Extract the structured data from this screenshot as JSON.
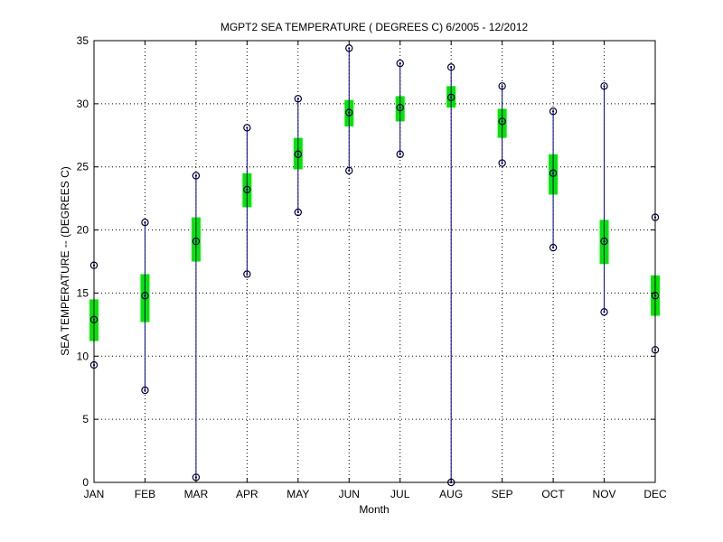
{
  "chart_data": {
    "type": "box",
    "title": "MGPT2  SEA TEMPERATURE ( DEGREES C) 6/2005 - 12/2012",
    "xlabel": "Month",
    "ylabel": "SEA TEMPERATURE -- (DEGREES C)",
    "categories": [
      "JAN",
      "FEB",
      "MAR",
      "APR",
      "MAY",
      "JUN",
      "JUL",
      "AUG",
      "SEP",
      "OCT",
      "NOV",
      "DEC"
    ],
    "ylim": [
      0,
      35
    ],
    "yticks": [
      "0",
      "5",
      "10",
      "15",
      "20",
      "25",
      "30",
      "35"
    ],
    "grid": true,
    "series": [
      {
        "min": [
          9.3,
          7.3,
          0.4,
          16.5,
          21.4,
          24.7,
          26.0,
          0.0,
          25.3,
          18.6,
          13.5,
          10.5
        ],
        "q1": [
          11.2,
          12.7,
          17.5,
          21.8,
          24.8,
          28.2,
          28.6,
          29.7,
          27.3,
          22.8,
          17.3,
          13.2
        ],
        "mean": [
          12.9,
          14.8,
          19.1,
          23.2,
          26.0,
          29.3,
          29.7,
          30.5,
          28.6,
          24.5,
          19.1,
          14.8
        ],
        "q3": [
          14.5,
          16.5,
          21.0,
          24.5,
          27.3,
          30.3,
          30.6,
          31.4,
          29.6,
          26.0,
          20.8,
          16.4
        ],
        "max": [
          17.2,
          20.6,
          24.3,
          28.1,
          30.4,
          34.4,
          33.2,
          32.9,
          31.4,
          29.4,
          31.4,
          21.0
        ]
      }
    ],
    "colors": {
      "whisker": "#00008b",
      "box": "#00e600",
      "marker": "#00003f",
      "grid": "#000000"
    }
  }
}
